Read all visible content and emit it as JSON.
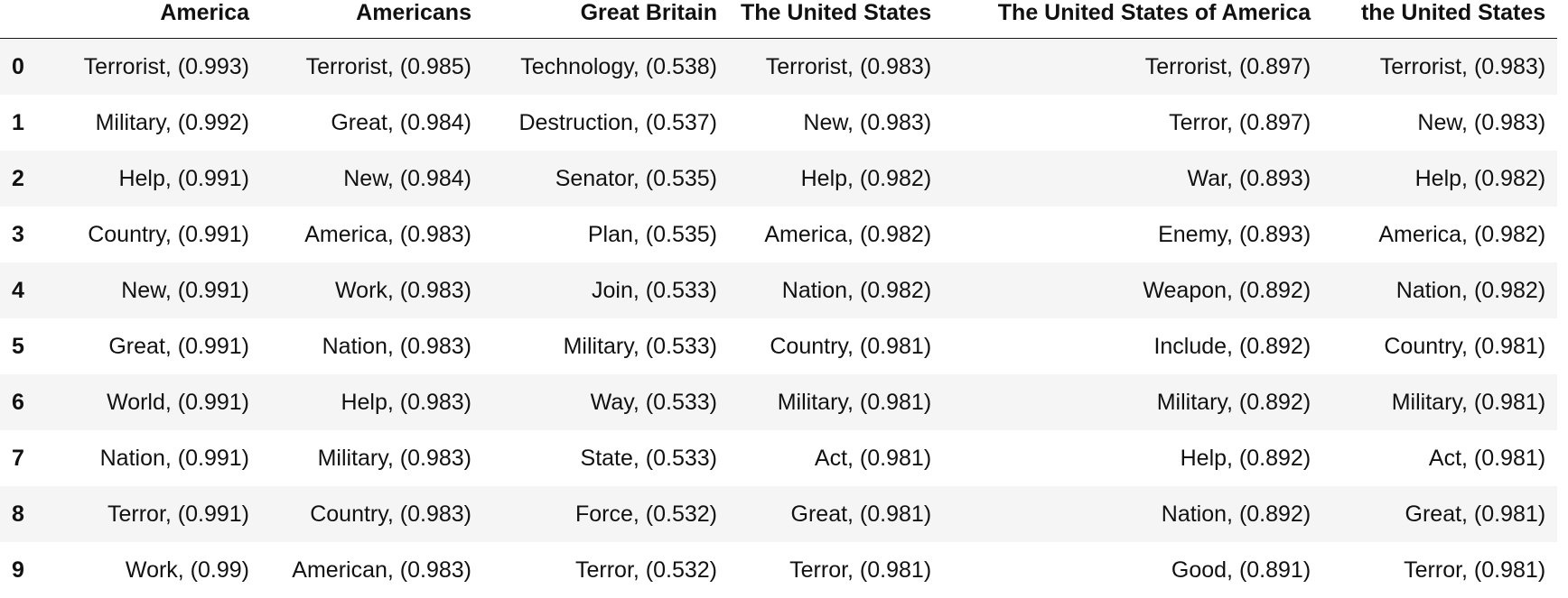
{
  "table": {
    "index_header": "",
    "columns": [
      "America",
      "Americans",
      "Great Britain",
      "The United States",
      "The United States of America",
      "the United States"
    ],
    "rows": [
      {
        "index": "0",
        "cells": [
          "Terrorist, (0.993)",
          "Terrorist, (0.985)",
          "Technology, (0.538)",
          "Terrorist, (0.983)",
          "Terrorist, (0.897)",
          "Terrorist, (0.983)"
        ]
      },
      {
        "index": "1",
        "cells": [
          "Military, (0.992)",
          "Great, (0.984)",
          "Destruction, (0.537)",
          "New, (0.983)",
          "Terror, (0.897)",
          "New, (0.983)"
        ]
      },
      {
        "index": "2",
        "cells": [
          "Help, (0.991)",
          "New, (0.984)",
          "Senator, (0.535)",
          "Help, (0.982)",
          "War, (0.893)",
          "Help, (0.982)"
        ]
      },
      {
        "index": "3",
        "cells": [
          "Country, (0.991)",
          "America, (0.983)",
          "Plan, (0.535)",
          "America, (0.982)",
          "Enemy, (0.893)",
          "America, (0.982)"
        ]
      },
      {
        "index": "4",
        "cells": [
          "New, (0.991)",
          "Work, (0.983)",
          "Join, (0.533)",
          "Nation, (0.982)",
          "Weapon, (0.892)",
          "Nation, (0.982)"
        ]
      },
      {
        "index": "5",
        "cells": [
          "Great, (0.991)",
          "Nation, (0.983)",
          "Military, (0.533)",
          "Country, (0.981)",
          "Include, (0.892)",
          "Country, (0.981)"
        ]
      },
      {
        "index": "6",
        "cells": [
          "World, (0.991)",
          "Help, (0.983)",
          "Way, (0.533)",
          "Military, (0.981)",
          "Military, (0.892)",
          "Military, (0.981)"
        ]
      },
      {
        "index": "7",
        "cells": [
          "Nation, (0.991)",
          "Military, (0.983)",
          "State, (0.533)",
          "Act, (0.981)",
          "Help, (0.892)",
          "Act, (0.981)"
        ]
      },
      {
        "index": "8",
        "cells": [
          "Terror, (0.991)",
          "Country, (0.983)",
          "Force, (0.532)",
          "Great, (0.981)",
          "Nation, (0.892)",
          "Great, (0.981)"
        ]
      },
      {
        "index": "9",
        "cells": [
          "Work, (0.99)",
          "American, (0.983)",
          "Terror, (0.532)",
          "Terror, (0.981)",
          "Good, (0.891)",
          "Terror, (0.981)"
        ]
      }
    ]
  },
  "colors": {
    "row_stripe": "#f5f5f5",
    "row_plain": "#ffffff",
    "header_rule": "#1a1a1a",
    "text": "#111111"
  }
}
